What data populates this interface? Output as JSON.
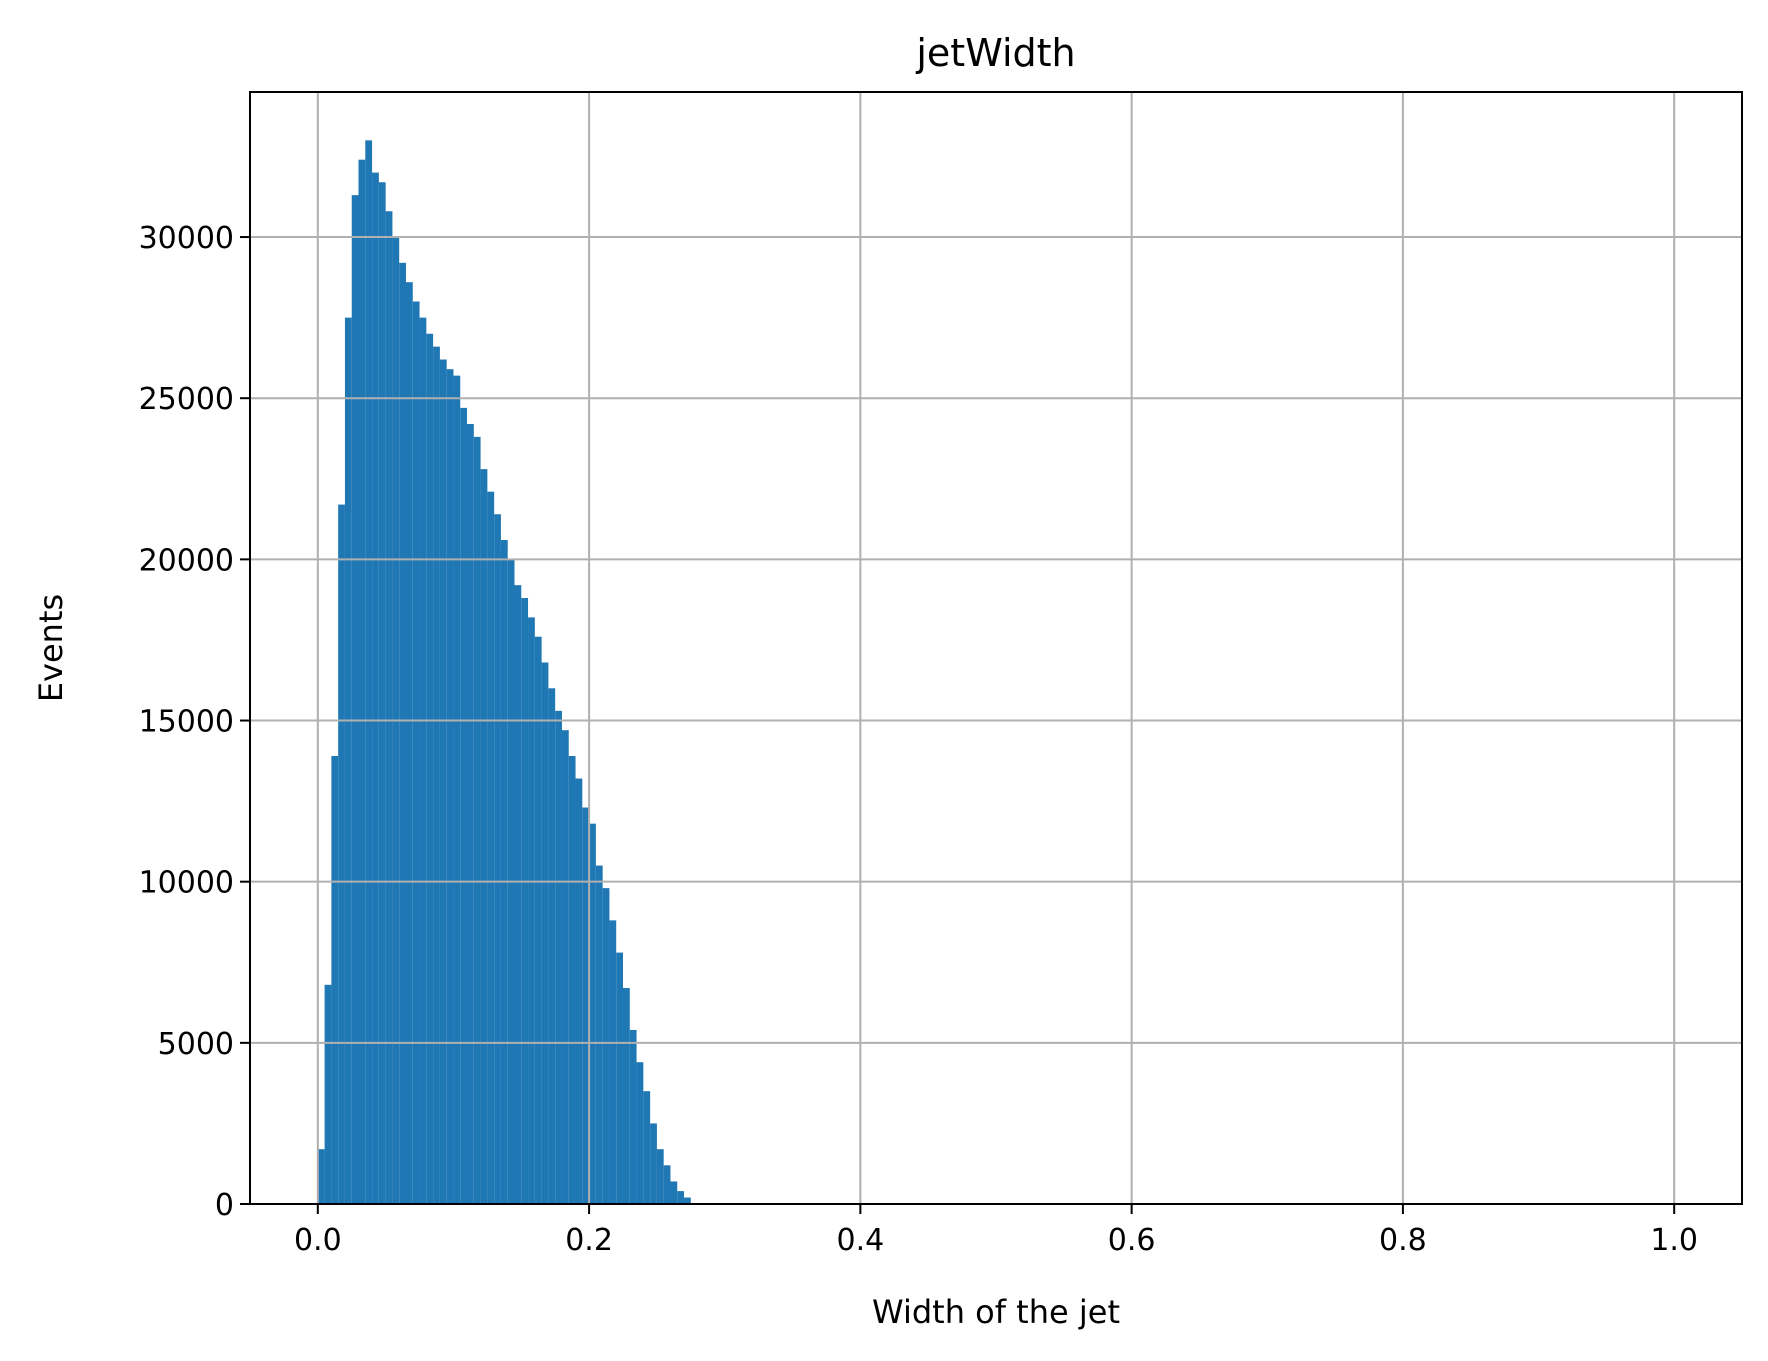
{
  "chart_data": {
    "type": "bar",
    "title": "jetWidth",
    "xlabel": "Width of the jet",
    "ylabel": "Events",
    "xlim": [
      -0.05,
      1.05
    ],
    "ylim": [
      0,
      34500
    ],
    "grid": true,
    "bar_color": "#1f77b4",
    "bin_width": 0.005,
    "x_ticks": [
      0.0,
      0.2,
      0.4,
      0.6,
      0.8,
      1.0
    ],
    "x_tick_labels": [
      "0.0",
      "0.2",
      "0.4",
      "0.6",
      "0.8",
      "1.0"
    ],
    "y_ticks": [
      0,
      5000,
      10000,
      15000,
      20000,
      25000,
      30000
    ],
    "y_tick_labels": [
      "0",
      "5000",
      "10000",
      "15000",
      "20000",
      "25000",
      "30000"
    ],
    "bin_starts": [
      0.0,
      0.005,
      0.01,
      0.015,
      0.02,
      0.025,
      0.03,
      0.035,
      0.04,
      0.045,
      0.05,
      0.055,
      0.06,
      0.065,
      0.07,
      0.075,
      0.08,
      0.085,
      0.09,
      0.095,
      0.1,
      0.105,
      0.11,
      0.115,
      0.12,
      0.125,
      0.13,
      0.135,
      0.14,
      0.145,
      0.15,
      0.155,
      0.16,
      0.165,
      0.17,
      0.175,
      0.18,
      0.185,
      0.19,
      0.195,
      0.2,
      0.205,
      0.21,
      0.215,
      0.22,
      0.225,
      0.23,
      0.235,
      0.24,
      0.245,
      0.25,
      0.255,
      0.26,
      0.265,
      0.27
    ],
    "values": [
      1700,
      6800,
      13900,
      21700,
      27500,
      31300,
      32400,
      33000,
      32000,
      31700,
      30800,
      30000,
      29200,
      28600,
      28000,
      27500,
      27000,
      26600,
      26200,
      25900,
      25700,
      24700,
      24200,
      23800,
      22800,
      22100,
      21400,
      20600,
      20000,
      19200,
      18800,
      18200,
      17600,
      16800,
      16000,
      15300,
      14700,
      13900,
      13200,
      12300,
      11800,
      10500,
      9800,
      8800,
      7800,
      6700,
      5400,
      4400,
      3500,
      2500,
      1700,
      1200,
      700,
      400,
      200
    ]
  }
}
